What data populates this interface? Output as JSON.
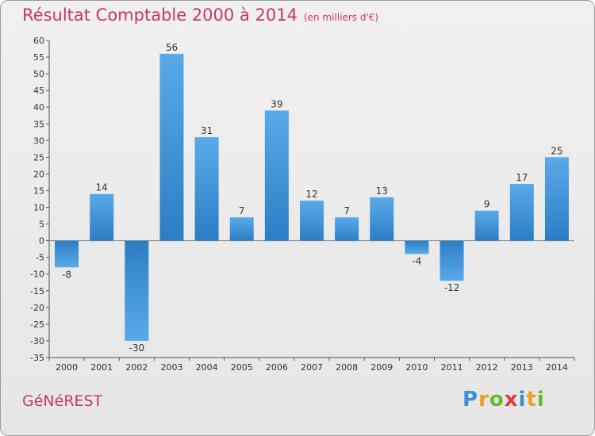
{
  "header": {
    "title": "Résultat Comptable 2000 à 2014",
    "subtitle": "(en milliers d'€)"
  },
  "footer": {
    "commune": "GéNéREST",
    "logo_letters": [
      "P",
      "r",
      "o",
      "x",
      "i",
      "t",
      "i"
    ],
    "logo_colors": [
      "#3a8fd8",
      "#e8a020",
      "#6ab82e",
      "#e23a3a",
      "#3a8fd8",
      "#e8a020",
      "#6ab82e"
    ]
  },
  "chart_data": {
    "type": "bar",
    "title": "Résultat Comptable 2000 à 2014",
    "units": "en milliers d'€",
    "categories": [
      "2000",
      "2001",
      "2002",
      "2003",
      "2004",
      "2005",
      "2006",
      "2007",
      "2008",
      "2009",
      "2010",
      "2011",
      "2012",
      "2013",
      "2014"
    ],
    "values": [
      -8,
      14,
      -30,
      56,
      31,
      7,
      39,
      12,
      7,
      13,
      -4,
      -12,
      9,
      17,
      25
    ],
    "ylim": [
      -35,
      60
    ],
    "ytick_step": 5,
    "grid": false,
    "bar_color_light": "#5aaaea",
    "bar_color_dark": "#2c7dc4"
  }
}
